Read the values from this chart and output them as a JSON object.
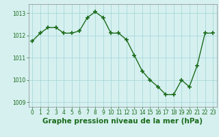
{
  "x": [
    0,
    1,
    2,
    3,
    4,
    5,
    6,
    7,
    8,
    9,
    10,
    11,
    12,
    13,
    14,
    15,
    16,
    17,
    18,
    19,
    20,
    21,
    22,
    23
  ],
  "y": [
    1011.75,
    1012.1,
    1012.35,
    1012.35,
    1012.1,
    1012.1,
    1012.2,
    1012.8,
    1013.05,
    1012.8,
    1012.1,
    1012.1,
    1011.8,
    1011.1,
    1010.4,
    1010.0,
    1009.7,
    1009.35,
    1009.35,
    1010.0,
    1009.7,
    1010.65,
    1012.1,
    1012.1
  ],
  "line_color": "#1a6b1a",
  "marker": "+",
  "marker_size": 4,
  "marker_lw": 1.2,
  "line_width": 1.0,
  "bg_color": "#d6f0f0",
  "grid_color": "#a8d8d8",
  "tick_color": "#1a6b1a",
  "xlabel": "Graphe pression niveau de la mer (hPa)",
  "xlabel_fontsize": 7.5,
  "xlabel_color": "#1a6b1a",
  "ylim": [
    1008.8,
    1013.4
  ],
  "yticks": [
    1009,
    1010,
    1011,
    1012,
    1013
  ],
  "xticks": [
    0,
    1,
    2,
    3,
    4,
    5,
    6,
    7,
    8,
    9,
    10,
    11,
    12,
    13,
    14,
    15,
    16,
    17,
    18,
    19,
    20,
    21,
    22,
    23
  ],
  "tick_fontsize": 5.5,
  "spine_color": "#888888"
}
